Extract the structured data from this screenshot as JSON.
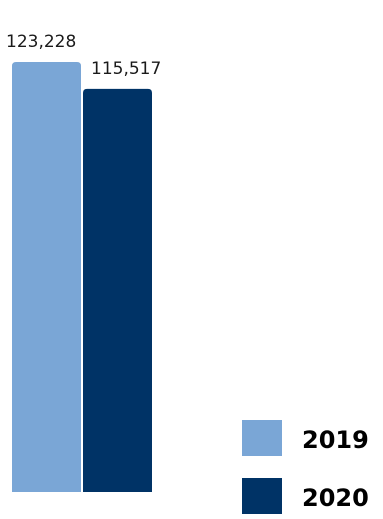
{
  "chart_data": {
    "type": "bar",
    "categories": [
      "2019",
      "2020"
    ],
    "values": [
      123228,
      115517
    ],
    "value_labels": [
      "123,228",
      "115,517"
    ],
    "colors": [
      "#7aa6d6",
      "#003366"
    ],
    "ylim": [
      0,
      123228
    ],
    "grid": false,
    "legend_position": "bottom-right",
    "legend": [
      {
        "label": "2019",
        "color": "#7aa6d6"
      },
      {
        "label": "2020",
        "color": "#003366"
      }
    ]
  }
}
